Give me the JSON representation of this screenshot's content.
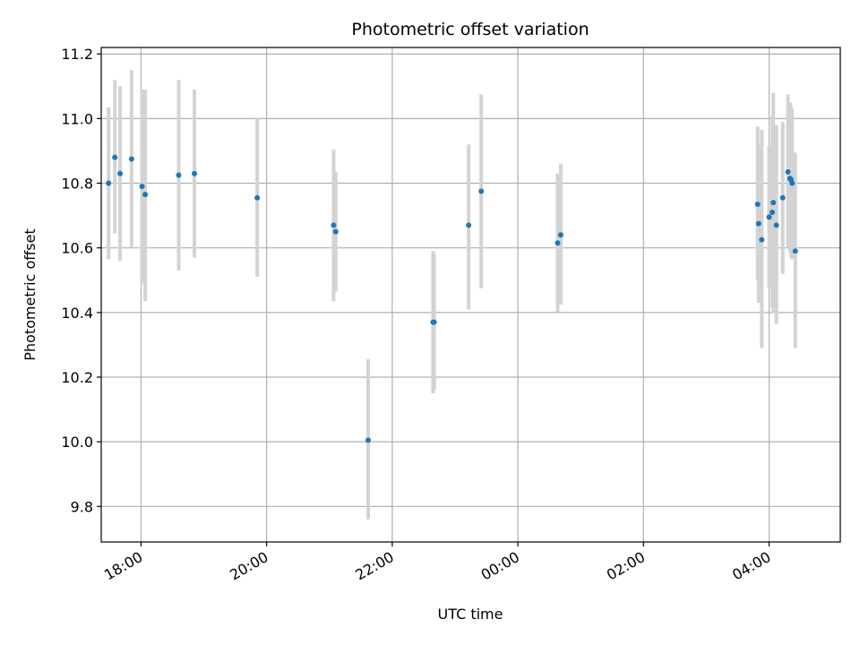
{
  "chart_data": {
    "type": "scatter",
    "title": "Photometric offset variation",
    "xlabel": "UTC time",
    "ylabel": "Photometric offset",
    "x_axis": "time",
    "xlim": [
      "17:22",
      "05:08"
    ],
    "ylim": [
      9.69,
      11.22
    ],
    "x_ticks": [
      "18:00",
      "20:00",
      "22:00",
      "00:00",
      "02:00",
      "04:00"
    ],
    "y_ticks": [
      "9.8",
      "10.0",
      "10.2",
      "10.4",
      "10.6",
      "10.8",
      "11.0",
      "11.2"
    ],
    "grid": true,
    "point_color": "#1f77b4",
    "errorbar_color": "#d3d3d3",
    "points": [
      {
        "time": "17:29",
        "y": 10.8,
        "lo": 10.565,
        "hi": 11.035
      },
      {
        "time": "17:35",
        "y": 10.88,
        "lo": 10.645,
        "hi": 11.12
      },
      {
        "time": "17:40",
        "y": 10.83,
        "lo": 10.56,
        "hi": 11.1
      },
      {
        "time": "17:51",
        "y": 10.875,
        "lo": 10.6,
        "hi": 11.15
      },
      {
        "time": "18:01",
        "y": 10.79,
        "lo": 10.49,
        "hi": 11.09
      },
      {
        "time": "18:04",
        "y": 10.765,
        "lo": 10.435,
        "hi": 11.09
      },
      {
        "time": "18:36",
        "y": 10.825,
        "lo": 10.53,
        "hi": 11.12
      },
      {
        "time": "18:51",
        "y": 10.83,
        "lo": 10.57,
        "hi": 11.09
      },
      {
        "time": "19:51",
        "y": 10.755,
        "lo": 10.51,
        "hi": 11.0
      },
      {
        "time": "21:04",
        "y": 10.67,
        "lo": 10.435,
        "hi": 10.905
      },
      {
        "time": "21:06",
        "y": 10.65,
        "lo": 10.465,
        "hi": 10.835
      },
      {
        "time": "21:37",
        "y": 10.005,
        "lo": 9.76,
        "hi": 10.255
      },
      {
        "time": "22:39",
        "y": 10.37,
        "lo": 10.15,
        "hi": 10.59
      },
      {
        "time": "22:40",
        "y": 10.37,
        "lo": 10.16,
        "hi": 10.58
      },
      {
        "time": "23:13",
        "y": 10.67,
        "lo": 10.41,
        "hi": 10.92
      },
      {
        "time": "23:25",
        "y": 10.775,
        "lo": 10.475,
        "hi": 11.075
      },
      {
        "time": "00:38",
        "y": 10.615,
        "lo": 10.4,
        "hi": 10.83
      },
      {
        "time": "00:41",
        "y": 10.64,
        "lo": 10.425,
        "hi": 10.86
      },
      {
        "time": "03:49",
        "y": 10.735,
        "lo": 10.5,
        "hi": 10.975
      },
      {
        "time": "03:50",
        "y": 10.675,
        "lo": 10.43,
        "hi": 10.92
      },
      {
        "time": "03:53",
        "y": 10.625,
        "lo": 10.29,
        "hi": 10.965
      },
      {
        "time": "04:00",
        "y": 10.695,
        "lo": 10.475,
        "hi": 10.915
      },
      {
        "time": "04:03",
        "y": 10.71,
        "lo": 10.415,
        "hi": 11.01
      },
      {
        "time": "04:04",
        "y": 10.74,
        "lo": 10.4,
        "hi": 11.08
      },
      {
        "time": "04:07",
        "y": 10.67,
        "lo": 10.365,
        "hi": 10.98
      },
      {
        "time": "04:13",
        "y": 10.755,
        "lo": 10.52,
        "hi": 10.99
      },
      {
        "time": "04:18",
        "y": 10.835,
        "lo": 10.6,
        "hi": 11.075
      },
      {
        "time": "04:20",
        "y": 10.815,
        "lo": 10.585,
        "hi": 11.05
      },
      {
        "time": "04:21",
        "y": 10.81,
        "lo": 10.57,
        "hi": 11.04
      },
      {
        "time": "04:22",
        "y": 10.8,
        "lo": 10.565,
        "hi": 11.03
      },
      {
        "time": "04:25",
        "y": 10.59,
        "lo": 10.29,
        "hi": 10.895
      }
    ]
  }
}
